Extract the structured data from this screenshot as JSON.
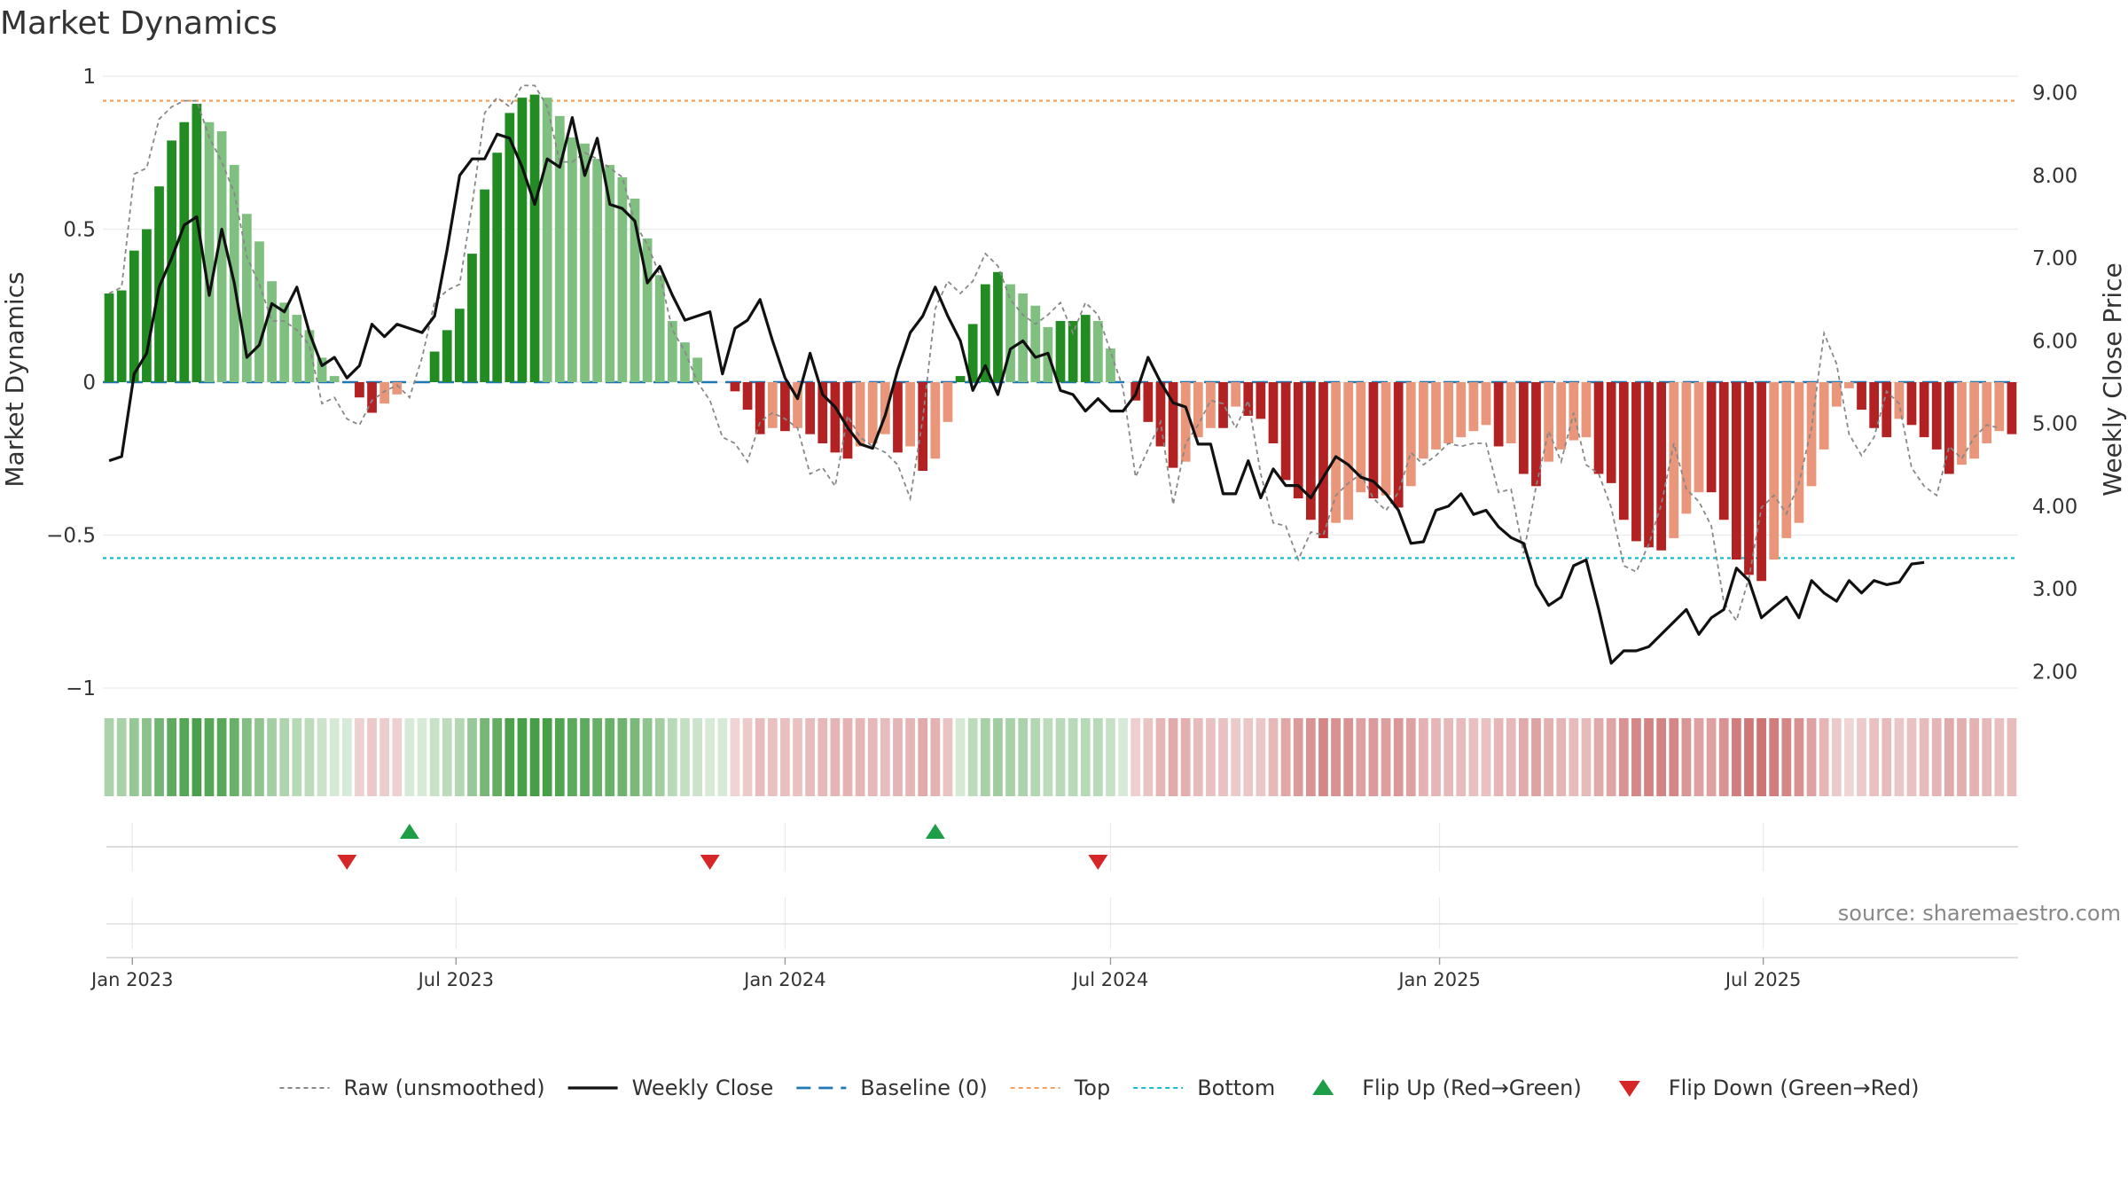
{
  "chart_data": {
    "type": "bar",
    "title": "Market Dynamics",
    "ylabel_left": "Market Dynamics",
    "ylabel_right": "Weekly Close Price",
    "ylim_left": [
      -1,
      1
    ],
    "ylim_right": [
      1.8,
      9.2
    ],
    "left_ticks": [
      {
        "v": 1,
        "label": "1"
      },
      {
        "v": 0.5,
        "label": "0.5"
      },
      {
        "v": 0,
        "label": "0"
      },
      {
        "v": -0.5,
        "label": "−0.5"
      },
      {
        "v": -1,
        "label": "−1"
      }
    ],
    "right_ticks": [
      {
        "v": 9,
        "label": "9.00"
      },
      {
        "v": 8,
        "label": "8.00"
      },
      {
        "v": 7,
        "label": "7.00"
      },
      {
        "v": 6,
        "label": "6.00"
      },
      {
        "v": 5,
        "label": "5.00"
      },
      {
        "v": 4,
        "label": "4.00"
      },
      {
        "v": 3,
        "label": "3.00"
      },
      {
        "v": 2,
        "label": "2.00"
      }
    ],
    "x_ticks": [
      {
        "date": "2023-01-01",
        "label": "Jan 2023"
      },
      {
        "date": "2023-07-01",
        "label": "Jul 2023"
      },
      {
        "date": "2024-01-01",
        "label": "Jan 2024"
      },
      {
        "date": "2024-07-01",
        "label": "Jul 2024"
      },
      {
        "date": "2025-01-01",
        "label": "Jan 2025"
      },
      {
        "date": "2025-07-01",
        "label": "Jul 2025"
      }
    ],
    "start_date": "2022-12-19",
    "week_days": 7,
    "top_level": 0.92,
    "bottom_level": -0.575,
    "bars": [
      0.29,
      0.3,
      0.43,
      0.5,
      0.64,
      0.79,
      0.85,
      0.91,
      0.85,
      0.82,
      0.71,
      0.55,
      0.46,
      0.33,
      0.26,
      0.22,
      0.17,
      0.08,
      0.02,
      0,
      -0.05,
      -0.1,
      -0.07,
      -0.04,
      0,
      0,
      0.1,
      0.17,
      0.24,
      0.42,
      0.63,
      0.75,
      0.88,
      0.93,
      0.94,
      0.93,
      0.87,
      0.8,
      0.78,
      0.73,
      0.71,
      0.67,
      0.6,
      0.47,
      0.35,
      0.2,
      0.13,
      0.08,
      0,
      0,
      -0.03,
      -0.09,
      -0.17,
      -0.15,
      -0.16,
      -0.15,
      -0.17,
      -0.2,
      -0.23,
      -0.25,
      -0.21,
      -0.2,
      -0.17,
      -0.23,
      -0.21,
      -0.29,
      -0.25,
      -0.13,
      0.02,
      0.19,
      0.32,
      0.36,
      0.32,
      0.29,
      0.25,
      0.18,
      0.2,
      0.2,
      0.22,
      0.2,
      0.11,
      0,
      -0.06,
      -0.13,
      -0.21,
      -0.28,
      -0.26,
      -0.18,
      -0.15,
      -0.15,
      -0.08,
      -0.11,
      -0.12,
      -0.2,
      -0.32,
      -0.38,
      -0.45,
      -0.51,
      -0.46,
      -0.45,
      -0.36,
      -0.38,
      -0.37,
      -0.41,
      -0.34,
      -0.25,
      -0.22,
      -0.2,
      -0.18,
      -0.16,
      -0.14,
      -0.21,
      -0.2,
      -0.3,
      -0.34,
      -0.26,
      -0.22,
      -0.19,
      -0.18,
      -0.3,
      -0.33,
      -0.45,
      -0.52,
      -0.54,
      -0.55,
      -0.51,
      -0.43,
      -0.36,
      -0.36,
      -0.45,
      -0.58,
      -0.63,
      -0.65,
      -0.58,
      -0.51,
      -0.46,
      -0.34,
      -0.22,
      -0.08,
      -0.02,
      -0.09,
      -0.15,
      -0.18,
      -0.12,
      -0.14,
      -0.18,
      -0.22,
      -0.3,
      -0.27,
      -0.25,
      -0.2,
      -0.16,
      -0.17
    ],
    "raw": [
      0.29,
      0.31,
      0.68,
      0.7,
      0.86,
      0.9,
      0.92,
      0.92,
      0.8,
      0.72,
      0.62,
      0.41,
      0.32,
      0.2,
      0.2,
      0.17,
      0.12,
      -0.07,
      -0.05,
      -0.12,
      -0.14,
      -0.06,
      -0.03,
      -0.01,
      -0.05,
      0.08,
      0.26,
      0.3,
      0.32,
      0.58,
      0.88,
      0.93,
      0.9,
      0.97,
      0.97,
      0.9,
      0.72,
      0.72,
      0.75,
      0.73,
      0.7,
      0.67,
      0.52,
      0.45,
      0.35,
      0.17,
      0.1,
      0,
      -0.06,
      -0.18,
      -0.2,
      -0.26,
      -0.13,
      -0.1,
      -0.12,
      -0.15,
      -0.3,
      -0.28,
      -0.34,
      -0.11,
      -0.18,
      -0.21,
      -0.23,
      -0.27,
      -0.38,
      -0.12,
      0.24,
      0.33,
      0.29,
      0.33,
      0.42,
      0.38,
      0.27,
      0.22,
      0.19,
      0.22,
      0.26,
      0.16,
      0.26,
      0.22,
      0.1,
      -0.02,
      -0.31,
      -0.22,
      -0.13,
      -0.4,
      -0.2,
      -0.14,
      -0.06,
      -0.07,
      -0.15,
      -0.06,
      -0.3,
      -0.46,
      -0.47,
      -0.58,
      -0.49,
      -0.5,
      -0.37,
      -0.33,
      -0.3,
      -0.38,
      -0.42,
      -0.36,
      -0.23,
      -0.27,
      -0.24,
      -0.2,
      -0.21,
      -0.2,
      -0.2,
      -0.36,
      -0.35,
      -0.56,
      -0.34,
      -0.16,
      -0.26,
      -0.1,
      -0.27,
      -0.3,
      -0.41,
      -0.6,
      -0.62,
      -0.53,
      -0.4,
      -0.2,
      -0.35,
      -0.39,
      -0.47,
      -0.72,
      -0.78,
      -0.64,
      -0.41,
      -0.37,
      -0.43,
      -0.33,
      -0.15,
      0.16,
      0.06,
      -0.17,
      -0.24,
      -0.18,
      -0.03,
      -0.07,
      -0.28,
      -0.34,
      -0.37,
      -0.21,
      -0.25,
      -0.18,
      -0.14,
      -0.15
    ],
    "close": [
      4.55,
      4.6,
      5.6,
      5.85,
      6.65,
      7.0,
      7.4,
      7.5,
      6.55,
      7.35,
      6.7,
      5.8,
      5.95,
      6.45,
      6.35,
      6.65,
      6.1,
      5.7,
      5.8,
      5.55,
      5.7,
      6.2,
      6.05,
      6.2,
      6.15,
      6.1,
      6.3,
      7.1,
      8.0,
      8.2,
      8.2,
      8.5,
      8.45,
      8.1,
      7.65,
      8.2,
      8.1,
      8.7,
      8.0,
      8.45,
      7.65,
      7.6,
      7.45,
      6.7,
      6.9,
      6.55,
      6.25,
      6.3,
      6.35,
      5.6,
      6.15,
      6.25,
      6.5,
      6.0,
      5.55,
      5.3,
      5.85,
      5.35,
      5.2,
      4.95,
      4.75,
      4.7,
      5.1,
      5.65,
      6.1,
      6.3,
      6.65,
      6.3,
      6.0,
      5.4,
      5.7,
      5.35,
      5.9,
      6.0,
      5.8,
      5.85,
      5.4,
      5.35,
      5.15,
      5.3,
      5.15,
      5.15,
      5.35,
      5.8,
      5.5,
      5.25,
      5.2,
      4.75,
      4.75,
      4.15,
      4.15,
      4.55,
      4.1,
      4.45,
      4.25,
      4.25,
      4.1,
      4.35,
      4.6,
      4.5,
      4.35,
      4.3,
      4.15,
      3.95,
      3.55,
      3.57,
      3.95,
      4.0,
      4.15,
      3.9,
      3.95,
      3.75,
      3.62,
      3.55,
      3.05,
      2.8,
      2.9,
      3.28,
      3.35,
      2.75,
      2.1,
      2.25,
      2.25,
      2.3,
      2.45,
      2.6,
      2.75,
      2.45,
      2.65,
      2.75,
      3.25,
      3.1,
      2.65,
      2.78,
      2.9,
      2.65,
      3.1,
      2.95,
      2.85,
      3.1,
      2.95,
      3.1,
      3.05,
      3.08,
      3.3,
      3.32
    ],
    "flips_up": [
      {
        "week": 24
      },
      {
        "week": 66
      }
    ],
    "flips_down": [
      {
        "week": 19
      },
      {
        "week": 48
      },
      {
        "week": 79
      }
    ],
    "legend": [
      {
        "label": "Raw (unsmoothed)",
        "kind": "dotted",
        "color": "#888888"
      },
      {
        "label": "Weekly Close",
        "kind": "solid",
        "color": "#111111"
      },
      {
        "label": "Baseline (0)",
        "kind": "dashed",
        "color": "#1f77b4"
      },
      {
        "label": "Top",
        "kind": "dotted",
        "color": "#f4a261"
      },
      {
        "label": "Bottom",
        "kind": "dotted",
        "color": "#17becf"
      },
      {
        "label": "Flip Up (Red→Green)",
        "kind": "tri-up",
        "color": "#1e9e46"
      },
      {
        "label": "Flip Down (Green→Red)",
        "kind": "tri-down",
        "color": "#d62728"
      }
    ],
    "colors": {
      "strong_green": "#228b22",
      "light_green": "#7fbf7f",
      "strong_red": "#b22222",
      "light_red": "#e9967a",
      "close_line": "#111111",
      "raw_line": "#888888",
      "baseline": "#1f77b4",
      "top_line": "#f4a261",
      "bottom_line": "#17becf",
      "flip_up": "#1e9e46",
      "flip_down": "#d62728"
    }
  },
  "source_note": "source: sharemaestro.com"
}
